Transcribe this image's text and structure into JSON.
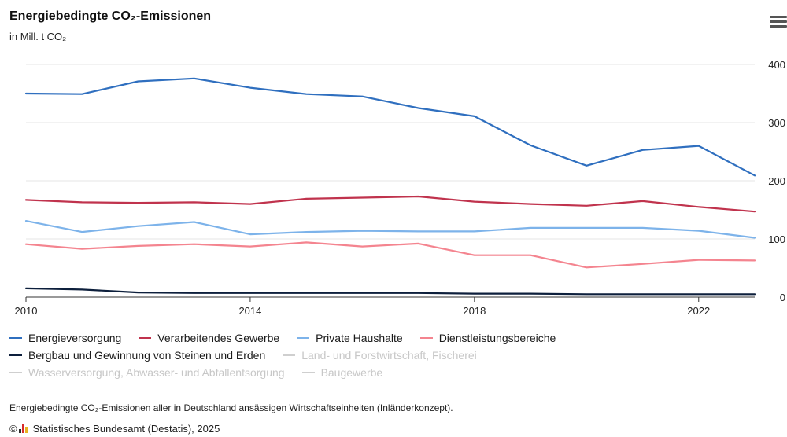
{
  "header": {
    "title": "Energiebedingte CO₂-Emissionen",
    "subtitle": "in Mill. t CO₂"
  },
  "footer": {
    "note": "Energiebedingte CO₂-Emissionen aller in Deutschland ansässigen Wirtschaftseinheiten (Inländerkonzept).",
    "copyright_symbol": "©",
    "source": "Statistisches Bundesamt (Destatis), 2025"
  },
  "colors": {
    "energy": "#2f6fbf",
    "industry": "#c0334d",
    "households": "#7db3ea",
    "services": "#f4848f",
    "mining": "#0d1f3c",
    "hidden": "#cfcfcf",
    "grid": "#e6e6e6"
  },
  "legend": [
    {
      "label": "Energieversorgung",
      "color": "#2f6fbf",
      "visible": true
    },
    {
      "label": "Verarbeitendes Gewerbe",
      "color": "#c0334d",
      "visible": true
    },
    {
      "label": "Private Haushalte",
      "color": "#7db3ea",
      "visible": true
    },
    {
      "label": "Dienstleistungsbereiche",
      "color": "#f4848f",
      "visible": true
    },
    {
      "label": "Bergbau und Gewinnung von Steinen und Erden",
      "color": "#0d1f3c",
      "visible": true
    },
    {
      "label": "Land- und Forstwirtschaft, Fischerei",
      "color": "#cfcfcf",
      "visible": false
    },
    {
      "label": "Wasserversorgung, Abwasser- und Abfallentsorgung",
      "color": "#cfcfcf",
      "visible": false
    },
    {
      "label": "Baugewerbe",
      "color": "#cfcfcf",
      "visible": false
    }
  ],
  "chart_data": {
    "type": "line",
    "x": [
      2010,
      2011,
      2012,
      2013,
      2014,
      2015,
      2016,
      2017,
      2018,
      2019,
      2020,
      2021,
      2022,
      2023
    ],
    "x_ticks": [
      2010,
      2014,
      2018,
      2022
    ],
    "y_ticks": [
      0,
      100,
      200,
      300,
      400
    ],
    "ylim": [
      0,
      400
    ],
    "y_axis_side": "right",
    "grid": true,
    "legend_position": "bottom",
    "series": [
      {
        "name": "Energieversorgung",
        "color": "#2f6fbf",
        "values": [
          350,
          349,
          371,
          376,
          360,
          349,
          345,
          325,
          311,
          261,
          226,
          253,
          260,
          209
        ]
      },
      {
        "name": "Verarbeitendes Gewerbe",
        "color": "#c0334d",
        "values": [
          167,
          163,
          162,
          163,
          160,
          169,
          171,
          173,
          164,
          160,
          157,
          165,
          155,
          147
        ]
      },
      {
        "name": "Private Haushalte",
        "color": "#7db3ea",
        "values": [
          131,
          112,
          122,
          129,
          108,
          112,
          114,
          113,
          113,
          119,
          119,
          119,
          114,
          102
        ]
      },
      {
        "name": "Dienstleistungsbereiche",
        "color": "#f4848f",
        "values": [
          91,
          83,
          88,
          91,
          87,
          94,
          87,
          92,
          72,
          72,
          51,
          57,
          64,
          63
        ]
      },
      {
        "name": "Bergbau und Gewinnung von Steinen und Erden",
        "color": "#0d1f3c",
        "values": [
          15,
          13,
          8,
          7,
          7,
          7,
          7,
          7,
          6,
          6,
          5,
          5,
          5,
          5
        ]
      }
    ]
  }
}
